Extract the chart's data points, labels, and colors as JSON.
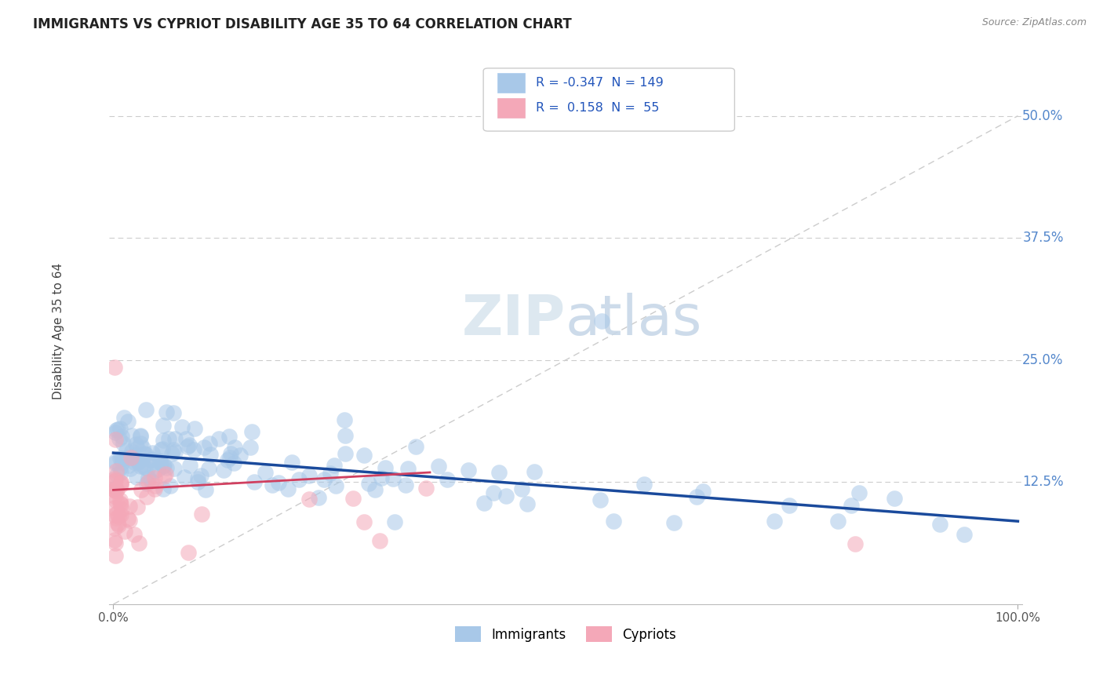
{
  "title": "IMMIGRANTS VS CYPRIOT DISABILITY AGE 35 TO 64 CORRELATION CHART",
  "source": "Source: ZipAtlas.com",
  "ylabel": "Disability Age 35 to 64",
  "xlim": [
    0.0,
    1.0
  ],
  "ylim": [
    0.0,
    0.55
  ],
  "xtick_labels_show": [
    "0.0%",
    "100.0%"
  ],
  "xtick_vals_show": [
    0.0,
    1.0
  ],
  "ytick_labels": [
    "12.5%",
    "25.0%",
    "37.5%",
    "50.0%"
  ],
  "ytick_vals": [
    0.125,
    0.25,
    0.375,
    0.5
  ],
  "legend_r_blue": "-0.347",
  "legend_n_blue": "149",
  "legend_r_pink": "0.158",
  "legend_n_pink": "55",
  "blue_color": "#a8c8e8",
  "pink_color": "#f4a8b8",
  "blue_line_color": "#1a4a9c",
  "pink_line_color": "#d04060",
  "gray_diag_color": "#cccccc",
  "ytick_color": "#5588cc",
  "watermark_color": "#dde8f0"
}
